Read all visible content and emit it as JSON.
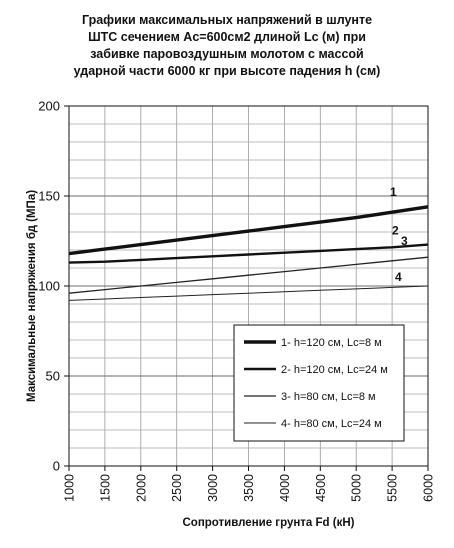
{
  "chart_data": {
    "type": "line",
    "title_lines": [
      "Графики максимальных напряжений в шлунте",
      "ШТС сечением Ac=600см2  длиной Lc (м) при",
      "забивке паровоздушным молотом с массой",
      "ударной части 6000 кг при высоте падения h (см)"
    ],
    "xlabel": "Сопротивление грунта Fd (кН)",
    "ylabel": "Максимальные напряжения бд  (МПа)",
    "xlim": [
      1000,
      6000
    ],
    "ylim": [
      0,
      200
    ],
    "x_ticks": [
      1000,
      1500,
      2000,
      2500,
      3000,
      3500,
      4000,
      4500,
      5000,
      5500,
      6000
    ],
    "y_ticks": [
      0,
      50,
      100,
      150,
      200
    ],
    "grid": true,
    "legend_position": "lower-right",
    "x": [
      1000,
      1500,
      2000,
      2500,
      3000,
      3500,
      4000,
      4500,
      5000,
      5500,
      6000
    ],
    "series": [
      {
        "name": "1- h=120 см, Lc=8 м",
        "label": "1",
        "values": [
          118,
          120.5,
          123,
          125.5,
          128,
          130.5,
          133,
          135.5,
          138,
          141,
          144
        ],
        "stroke_color": "#111111",
        "stroke_weight": "heavy"
      },
      {
        "name": "2- h=120 см, Lc=24 м",
        "label": "2",
        "values": [
          113,
          113.5,
          114.5,
          115.5,
          116.5,
          117.5,
          118.5,
          119.5,
          120.5,
          121.5,
          123
        ],
        "stroke_color": "#111111",
        "stroke_weight": "medium"
      },
      {
        "name": "3- h=80 см, Lc=8 м",
        "label": "3",
        "values": [
          96,
          98,
          100,
          102,
          104,
          106,
          108,
          110,
          112,
          114,
          116
        ],
        "stroke_color": "#222222",
        "stroke_weight": "light"
      },
      {
        "name": "4- h=80 см, Lc=24 м",
        "label": "4",
        "values": [
          92,
          92.8,
          93.6,
          94.4,
          95.2,
          96,
          96.8,
          97.6,
          98.4,
          99.2,
          100
        ],
        "stroke_color": "#222222",
        "stroke_weight": "thin"
      }
    ]
  }
}
